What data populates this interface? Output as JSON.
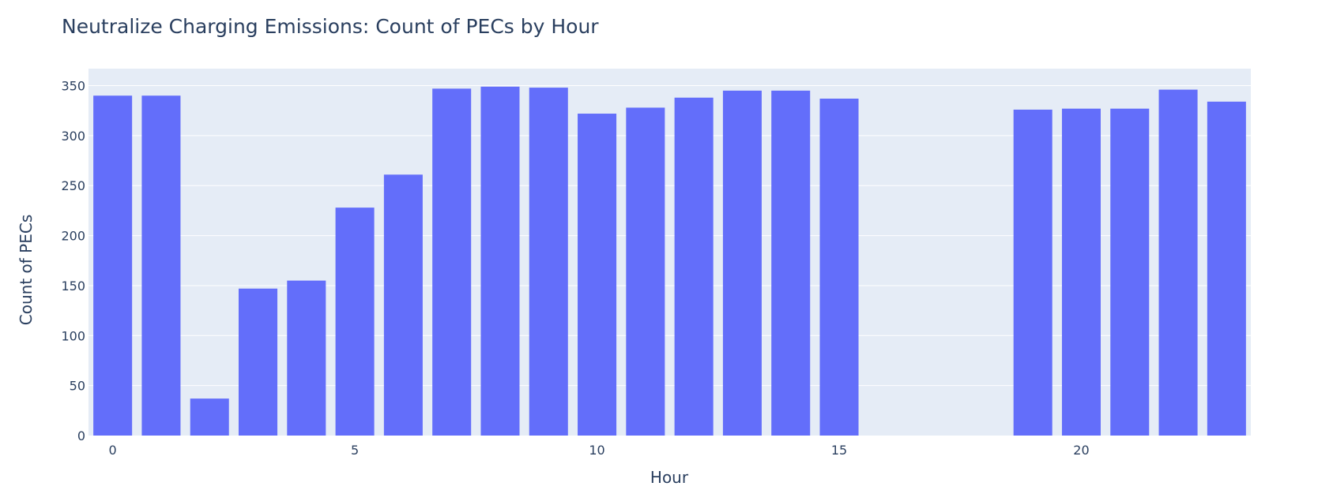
{
  "chart_data": {
    "type": "bar",
    "title": "Neutralize Charging Emissions: Count of PECs by Hour",
    "xlabel": "Hour",
    "ylabel": "Count of PECs",
    "x": [
      0,
      1,
      2,
      3,
      4,
      5,
      6,
      7,
      8,
      9,
      10,
      11,
      12,
      13,
      14,
      15,
      16,
      17,
      18,
      19,
      20,
      21,
      22,
      23
    ],
    "values": [
      340,
      340,
      37,
      147,
      155,
      228,
      261,
      347,
      349,
      348,
      322,
      328,
      338,
      345,
      345,
      337,
      0,
      0,
      0,
      326,
      327,
      327,
      346,
      334
    ],
    "xlim": [
      -0.5,
      23.5
    ],
    "ylim": [
      0,
      367
    ],
    "xticks": [
      0,
      5,
      10,
      15,
      20
    ],
    "yticks": [
      0,
      50,
      100,
      150,
      200,
      250,
      300,
      350
    ],
    "grid": true,
    "colors": {
      "bar": "#636efa",
      "plot_bg": "#e5ecf6",
      "grid": "#ffffff",
      "text": "#2a3f5f"
    }
  }
}
